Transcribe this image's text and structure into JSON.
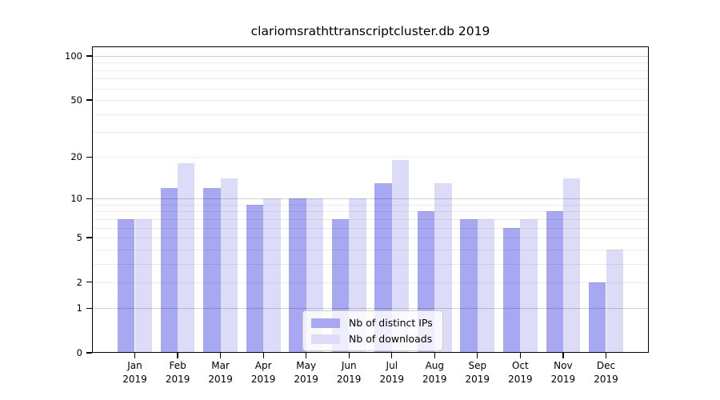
{
  "title": "clariomsrathttranscriptcluster.db 2019",
  "colors": {
    "distinct_ips_bar": "#a8a8f2",
    "downloads_bar": "#dcdcf8",
    "major_gridline": "#d1d1d1",
    "minor_gridline": "#ececec",
    "axis_frame": "#000000",
    "legend_border": "#cccccc",
    "legend_background": "rgba(255,255,255,0.8)"
  },
  "legend": {
    "items": [
      "Nb of distinct IPs",
      "Nb of downloads"
    ]
  },
  "chart_data": {
    "type": "bar",
    "title": "clariomsrathttranscriptcluster.db 2019",
    "categories": [
      "Jan",
      "Feb",
      "Mar",
      "Apr",
      "May",
      "Jun",
      "Jul",
      "Aug",
      "Sep",
      "Oct",
      "Nov",
      "Dec"
    ],
    "category_year": "2019",
    "series": [
      {
        "name": "Nb of distinct IPs",
        "color": "#a8a8f2",
        "values": [
          7,
          12,
          12,
          9,
          10,
          7,
          13,
          8,
          7,
          6,
          8,
          2
        ]
      },
      {
        "name": "Nb of downloads",
        "color": "#dcdcf8",
        "values": [
          7,
          18,
          14,
          10,
          10,
          10,
          19,
          13,
          7,
          7,
          14,
          4
        ]
      }
    ],
    "ylabel": "",
    "xlabel": "",
    "ylim": [
      0,
      100
    ],
    "yscale": "log10(1+y)",
    "yticks": [
      0,
      1,
      2,
      5,
      10,
      20,
      50,
      100
    ],
    "major_gridlines": [
      1,
      10,
      100
    ],
    "minor_gridlines": [
      2,
      3,
      4,
      5,
      6,
      7,
      8,
      9,
      20,
      30,
      40,
      50,
      60,
      70,
      80,
      90
    ],
    "grid": "horizontal",
    "legend_position": "lower center inside plot"
  }
}
